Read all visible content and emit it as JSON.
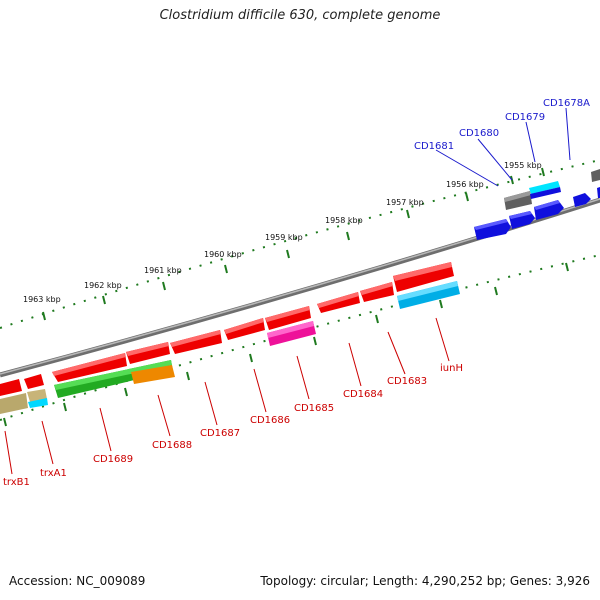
{
  "title": "Clostridium difficile 630, complete genome",
  "footer": {
    "accession": "Accession: NC_009089",
    "summary": "Topology: circular; Length: 4,290,252 bp; Genes: 3,926"
  },
  "colors": {
    "backbone": "#8a8a8a",
    "tick": "#1f7a1f",
    "label_forward": "#1a1acc",
    "label_reverse": "#cc0000"
  },
  "scale_labels": [
    "1955 kbp",
    "1956 kbp",
    "1957 kbp",
    "1958 kbp",
    "1959 kbp",
    "1960 kbp",
    "1961 kbp",
    "1962 kbp",
    "1963 kbp"
  ],
  "gene_labels_forward": [
    "CD1678A",
    "CD1679",
    "CD1680",
    "CD1681"
  ],
  "gene_labels_reverse": [
    "iunH",
    "CD1683",
    "CD1684",
    "CD1685",
    "CD1686",
    "CD1687",
    "CD1688",
    "CD1689",
    "trxA1",
    "trxB1"
  ]
}
